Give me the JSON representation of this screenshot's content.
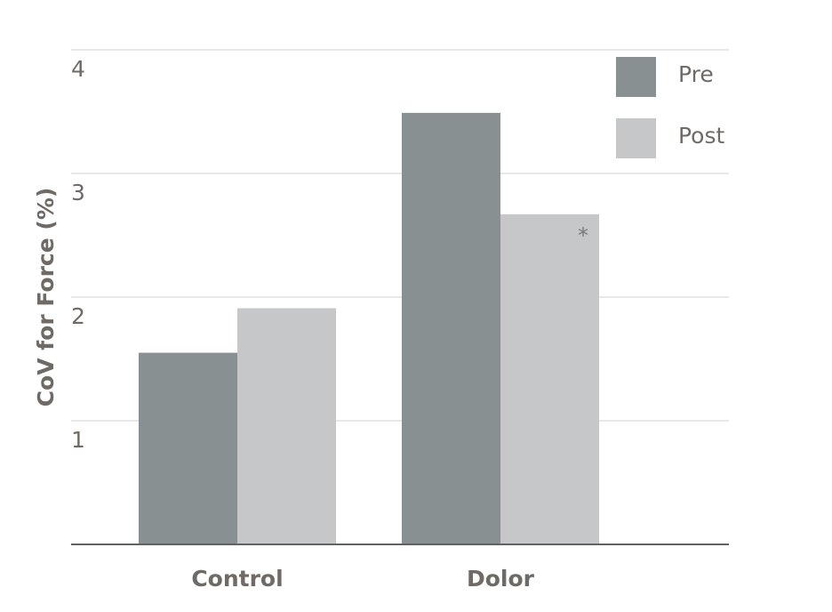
{
  "chart_data": {
    "type": "bar",
    "title": "",
    "xlabel": "",
    "ylabel": "CoV for Force (%)",
    "ylim": [
      0,
      4
    ],
    "yticks": [
      "1",
      "2",
      "3",
      "4"
    ],
    "grid": true,
    "legend_position": "top-right",
    "categories": [
      "Control",
      "Dolor"
    ],
    "series": [
      {
        "name": "Pre",
        "values": [
          1.55,
          3.49
        ],
        "color": "#899092"
      },
      {
        "name": "Post",
        "values": [
          1.91,
          2.67
        ],
        "color": "#c6c7c9"
      }
    ],
    "annotations": [
      {
        "category": "Dolor",
        "series": "Post",
        "text": "*"
      }
    ]
  }
}
